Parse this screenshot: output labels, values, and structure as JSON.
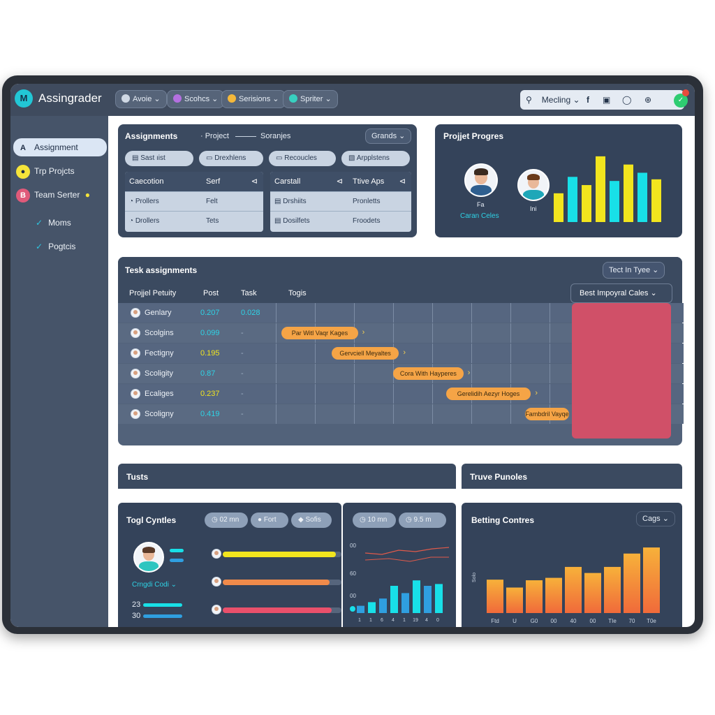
{
  "app": {
    "title": "Assingrader",
    "logo_text": "M"
  },
  "topbar": {
    "pills": [
      {
        "label": "Avoie ⌄",
        "dot": "#cfd8e4"
      },
      {
        "label": "Scohcs ⌄",
        "dot": "#b470e0"
      },
      {
        "label": "Serisions ⌄",
        "dot": "#f5b83a"
      },
      {
        "label": "Spriter ⌄",
        "dot": "#38d0c0"
      }
    ],
    "search_label": "Mecling ⌄",
    "icons": [
      "search-icon",
      "facebook-icon",
      "camera-icon",
      "ring-icon",
      "dollar-icon"
    ]
  },
  "sidebar": {
    "items": [
      {
        "label": "Assignment",
        "icon": "A",
        "icon_color": "#1d2c44"
      },
      {
        "label": "Trp Projcts",
        "icon": "●",
        "icon_color": "#f5e43a"
      },
      {
        "label": "Team Serter",
        "icon": "B",
        "icon_color": "#e05a7a"
      }
    ],
    "checks": [
      "Moms",
      "Pogtcis"
    ]
  },
  "assignments": {
    "title": "Assignments",
    "tabs": [
      "· Project",
      "Soranjes"
    ],
    "dropdown": "Grands ⌄",
    "buttons": [
      "Sast ıist",
      "Drexhlens",
      "Recoucles",
      "Arpplstens"
    ],
    "table_left": {
      "headers": [
        "Caecotion",
        "Serf",
        "⊲"
      ],
      "rows": [
        [
          "Prollers",
          "Felt"
        ],
        [
          "Drollers",
          "Tets"
        ]
      ]
    },
    "table_right": {
      "headers": [
        "Carstall",
        "⊲",
        "Ttive Aps",
        "⊲"
      ],
      "rows": [
        [
          "Drshiits",
          "Pronletts"
        ],
        [
          "Dosilfets",
          "Froodets"
        ]
      ]
    }
  },
  "progress": {
    "title": "Projjet Progres",
    "avatar1_name": "Caran Celes",
    "avatar1_label": "Fa",
    "avatar2_label": "Ini",
    "bars": [
      {
        "value": 35,
        "color": "#f2e51e"
      },
      {
        "value": 55,
        "color": "#18e0e8"
      },
      {
        "value": 45,
        "color": "#f2e51e"
      },
      {
        "value": 80,
        "color": "#f2e51e"
      },
      {
        "value": 50,
        "color": "#18e0e8"
      },
      {
        "value": 70,
        "color": "#f2e51e"
      },
      {
        "value": 60,
        "color": "#18e0e8"
      },
      {
        "value": 52,
        "color": "#f2e51e"
      }
    ]
  },
  "tasks": {
    "title": "Tesk assignments",
    "dropdown": "Tect In Tyee ⌄",
    "headers": [
      "Projjel Petuity",
      "Post",
      "Task",
      "Togis"
    ],
    "overlay_header": "Best Impoyral Cales ⌄",
    "rows": [
      {
        "name": "Genlary",
        "post": "0.207",
        "task": "0.028",
        "post_color": "#2ed3e6",
        "task_color": "#2ed3e6",
        "bar": "",
        "bar_start": 0,
        "bar_len": 0
      },
      {
        "name": "Scolgins",
        "post": "0.099",
        "task": "-",
        "post_color": "#2ed3e6",
        "task_color": "#9fb0c4",
        "bar": "Par Witl Vaqr Kages",
        "bar_start": 0.02,
        "bar_len": 0.26
      },
      {
        "name": "Fectigny",
        "post": "0.195",
        "task": "-",
        "post_color": "#f2e51e",
        "task_color": "#9fb0c4",
        "bar": "Gervciell Meyaltes",
        "bar_start": 0.19,
        "bar_len": 0.23
      },
      {
        "name": "Scoligity",
        "post": "0.87",
        "task": "-",
        "post_color": "#2ed3e6",
        "task_color": "#9fb0c4",
        "bar": "Cora With Hayperes",
        "bar_start": 0.4,
        "bar_len": 0.24
      },
      {
        "name": "Ecaliges",
        "post": "0.237",
        "task": "-",
        "post_color": "#f2e51e",
        "task_color": "#9fb0c4",
        "bar": "Gerelidih Aezyr Hoges",
        "bar_start": 0.58,
        "bar_len": 0.29
      },
      {
        "name": "Scoligny",
        "post": "0.419",
        "task": "-",
        "post_color": "#2ed3e6",
        "task_color": "#9fb0c4",
        "bar": "Fambdril Vayqe",
        "bar_start": 0.85,
        "bar_len": 0.22
      }
    ]
  },
  "section_tuts": {
    "title": "Tusts"
  },
  "section_truve": {
    "title": "Truve Punoles"
  },
  "togl": {
    "title": "Togl Cyntles",
    "chips": [
      "02 mn",
      "Fort",
      "Sofis"
    ],
    "person": "Crngdi Codi ⌄",
    "lines": [
      {
        "value": 0.95,
        "color": "#f2e51e"
      },
      {
        "value": 0.9,
        "color": "#f08a4a"
      },
      {
        "value": 0.92,
        "color": "#e9506b"
      }
    ],
    "stat1": "23",
    "stat2": "30"
  },
  "mini_chart": {
    "chips": [
      "10 mn",
      "9.5 m"
    ],
    "y_labels": [
      "00",
      "60",
      "00"
    ],
    "x_labels": [
      "1",
      "1",
      "6",
      "4",
      "1",
      "19",
      "4",
      "0"
    ]
  },
  "betting": {
    "title": "Betting Contres",
    "dropdown": "Cags ⌄",
    "ylabel": "Solo",
    "x_labels": [
      "Ftd",
      "U",
      "G0",
      "00",
      "40",
      "00",
      "TIe",
      "70",
      "T0e"
    ]
  },
  "chart_data": [
    {
      "type": "bar",
      "title": "Projjet Progres",
      "values": [
        35,
        55,
        45,
        80,
        50,
        70,
        60,
        52
      ]
    },
    {
      "type": "bar",
      "title": "Betting Contres",
      "ylabel": "Solo",
      "categories": [
        "Ftd",
        "U",
        "G0",
        "00",
        "40",
        "00",
        "TIe",
        "70",
        "T0e"
      ],
      "values": [
        55,
        42,
        54,
        58,
        76,
        66,
        76,
        98,
        108
      ],
      "ylim": [
        0,
        115
      ]
    },
    {
      "type": "bar",
      "values": [
        8,
        12,
        16,
        30,
        22,
        36,
        30,
        32
      ]
    }
  ]
}
